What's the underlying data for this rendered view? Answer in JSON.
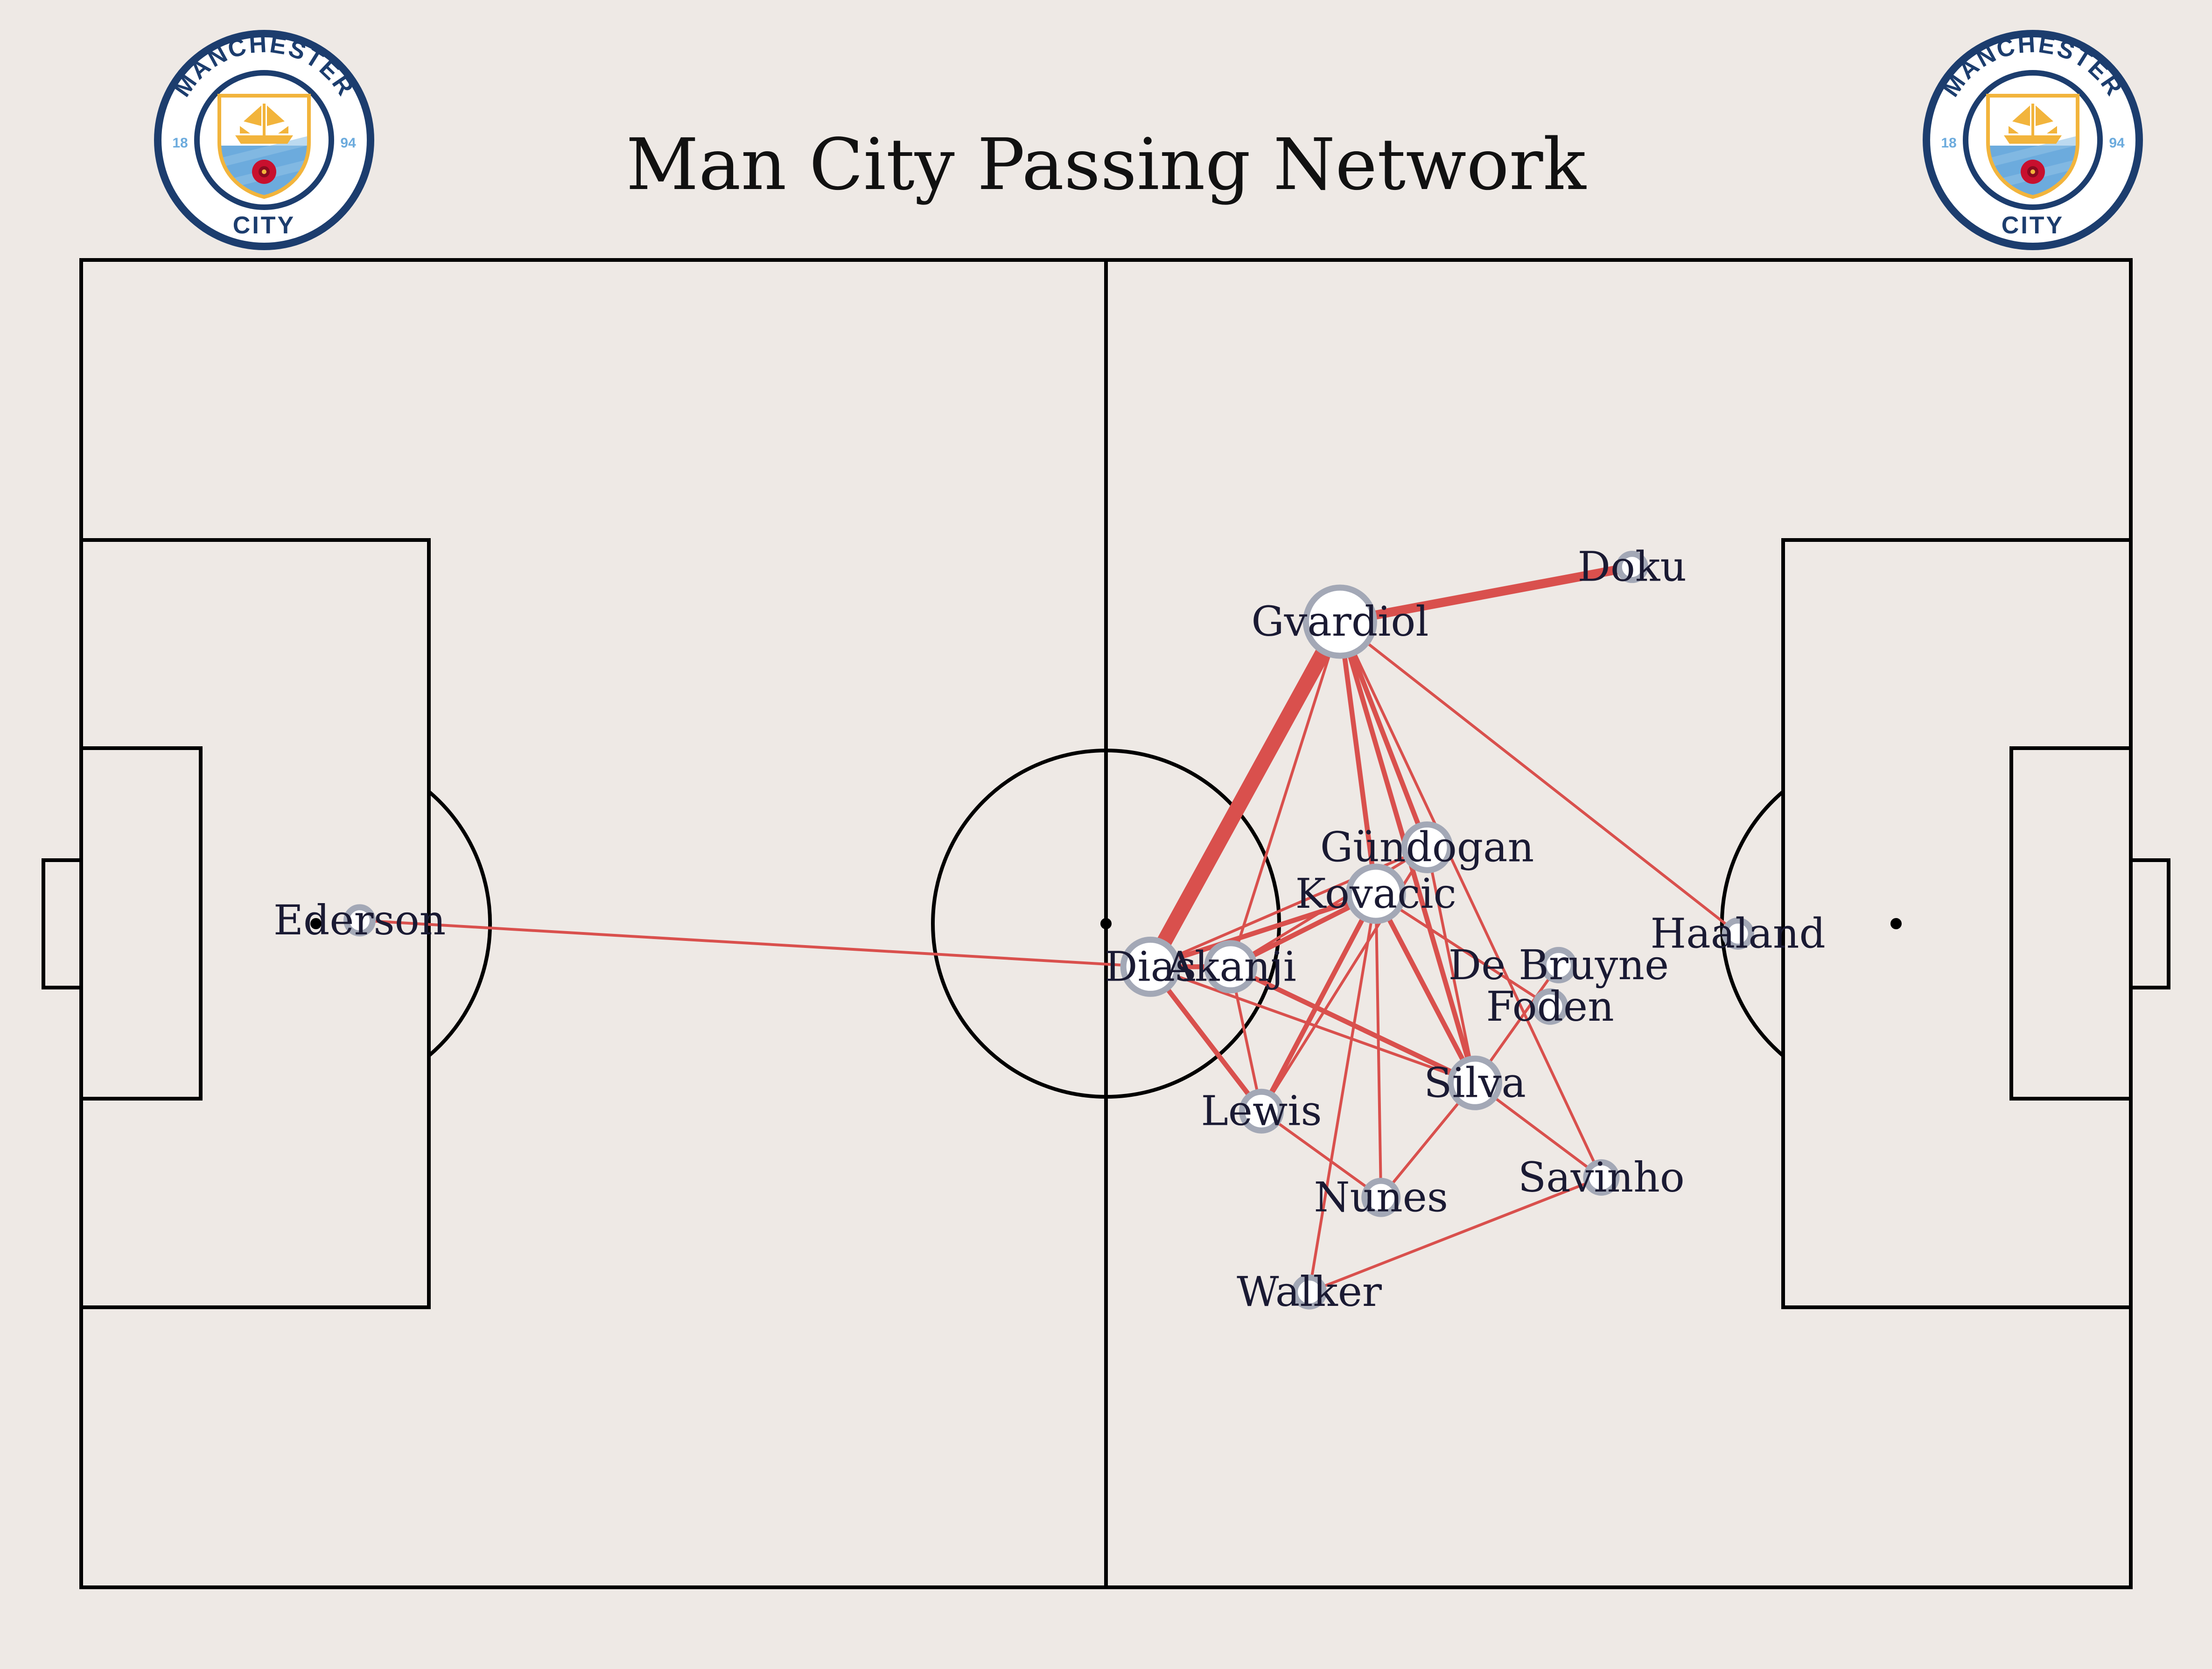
{
  "title": "Man City Passing Network",
  "colors": {
    "background": "#EEE9E5",
    "pitch_lines": "#000000",
    "pass_lines": "#D9504D",
    "node_fill": "#FFFFFF",
    "node_stroke": "#A3A8B6",
    "label": "#1a1a33",
    "crest_navy": "#1C3D6E",
    "crest_sky": "#6CABDD",
    "crest_gold": "#F2B43C",
    "crest_rose": "#C8102E"
  },
  "logos": [
    {
      "name": "man-city-crest-left",
      "top_text": "MANCHESTER",
      "bottom_text": "CITY",
      "year_left": "18",
      "year_right": "94"
    },
    {
      "name": "man-city-crest-right",
      "top_text": "MANCHESTER",
      "bottom_text": "CITY",
      "year_left": "18",
      "year_right": "94"
    }
  ],
  "chart_data": {
    "type": "network",
    "title": "Man City Passing Network",
    "pitch": {
      "length": 120,
      "width": 80
    },
    "nodes": [
      {
        "id": "ederson",
        "name": "Ederson",
        "x": 16.3,
        "y": 40.2,
        "size": 1
      },
      {
        "id": "dias",
        "name": "Dias",
        "x": 62.6,
        "y": 37.4,
        "size": 3
      },
      {
        "id": "gvardiol",
        "name": "Gvardiol",
        "x": 73.7,
        "y": 58.2,
        "size": 4
      },
      {
        "id": "doku",
        "name": "Doku",
        "x": 90.8,
        "y": 61.5,
        "size": 1
      },
      {
        "id": "gundogan",
        "name": "Gündogan",
        "x": 78.8,
        "y": 44.6,
        "size": 2.4
      },
      {
        "id": "kovacic",
        "name": "Kovacic",
        "x": 75.8,
        "y": 41.8,
        "size": 3
      },
      {
        "id": "akanji",
        "name": "Akanji",
        "x": 67.3,
        "y": 37.4,
        "size": 2.5
      },
      {
        "id": "debruyne",
        "name": "De Bruyne",
        "x": 86.5,
        "y": 37.5,
        "size": 1.3
      },
      {
        "id": "foden",
        "name": "Foden",
        "x": 86.0,
        "y": 35.0,
        "size": 1.3
      },
      {
        "id": "silva",
        "name": "Silva",
        "x": 81.6,
        "y": 30.4,
        "size": 2.6
      },
      {
        "id": "haaland",
        "name": "Haaland",
        "x": 97.0,
        "y": 39.4,
        "size": 1
      },
      {
        "id": "lewis",
        "name": "Lewis",
        "x": 69.1,
        "y": 28.7,
        "size": 1.9
      },
      {
        "id": "nunes",
        "name": "Nunes",
        "x": 76.1,
        "y": 23.5,
        "size": 1.5
      },
      {
        "id": "savinho",
        "name": "Savinho",
        "x": 89.0,
        "y": 24.7,
        "size": 1.3
      },
      {
        "id": "walker",
        "name": "Walker",
        "x": 71.9,
        "y": 17.8,
        "size": 1.2
      }
    ],
    "edges": [
      {
        "source": "dias",
        "target": "gvardiol",
        "weight": 7
      },
      {
        "source": "gvardiol",
        "target": "doku",
        "weight": 4
      },
      {
        "source": "ederson",
        "target": "dias",
        "weight": 1
      },
      {
        "source": "dias",
        "target": "kovacic",
        "weight": 2
      },
      {
        "source": "dias",
        "target": "gundogan",
        "weight": 1
      },
      {
        "source": "dias",
        "target": "akanji",
        "weight": 2
      },
      {
        "source": "dias",
        "target": "lewis",
        "weight": 2
      },
      {
        "source": "dias",
        "target": "silva",
        "weight": 1
      },
      {
        "source": "gvardiol",
        "target": "kovacic",
        "weight": 2
      },
      {
        "source": "gvardiol",
        "target": "gundogan",
        "weight": 2
      },
      {
        "source": "gvardiol",
        "target": "silva",
        "weight": 2
      },
      {
        "source": "gvardiol",
        "target": "akanji",
        "weight": 1
      },
      {
        "source": "gvardiol",
        "target": "haaland",
        "weight": 1
      },
      {
        "source": "gvardiol",
        "target": "savinho",
        "weight": 1
      },
      {
        "source": "akanji",
        "target": "kovacic",
        "weight": 2
      },
      {
        "source": "akanji",
        "target": "silva",
        "weight": 2
      },
      {
        "source": "akanji",
        "target": "gundogan",
        "weight": 1
      },
      {
        "source": "akanji",
        "target": "lewis",
        "weight": 1
      },
      {
        "source": "kovacic",
        "target": "silva",
        "weight": 2
      },
      {
        "source": "kovacic",
        "target": "lewis",
        "weight": 2
      },
      {
        "source": "kovacic",
        "target": "nunes",
        "weight": 1
      },
      {
        "source": "kovacic",
        "target": "walker",
        "weight": 1
      },
      {
        "source": "kovacic",
        "target": "foden",
        "weight": 1
      },
      {
        "source": "gundogan",
        "target": "silva",
        "weight": 1
      },
      {
        "source": "gundogan",
        "target": "lewis",
        "weight": 1
      },
      {
        "source": "lewis",
        "target": "nunes",
        "weight": 1
      },
      {
        "source": "silva",
        "target": "nunes",
        "weight": 1
      },
      {
        "source": "silva",
        "target": "savinho",
        "weight": 1
      },
      {
        "source": "silva",
        "target": "debruyne",
        "weight": 1
      },
      {
        "source": "savinho",
        "target": "walker",
        "weight": 1
      }
    ]
  }
}
